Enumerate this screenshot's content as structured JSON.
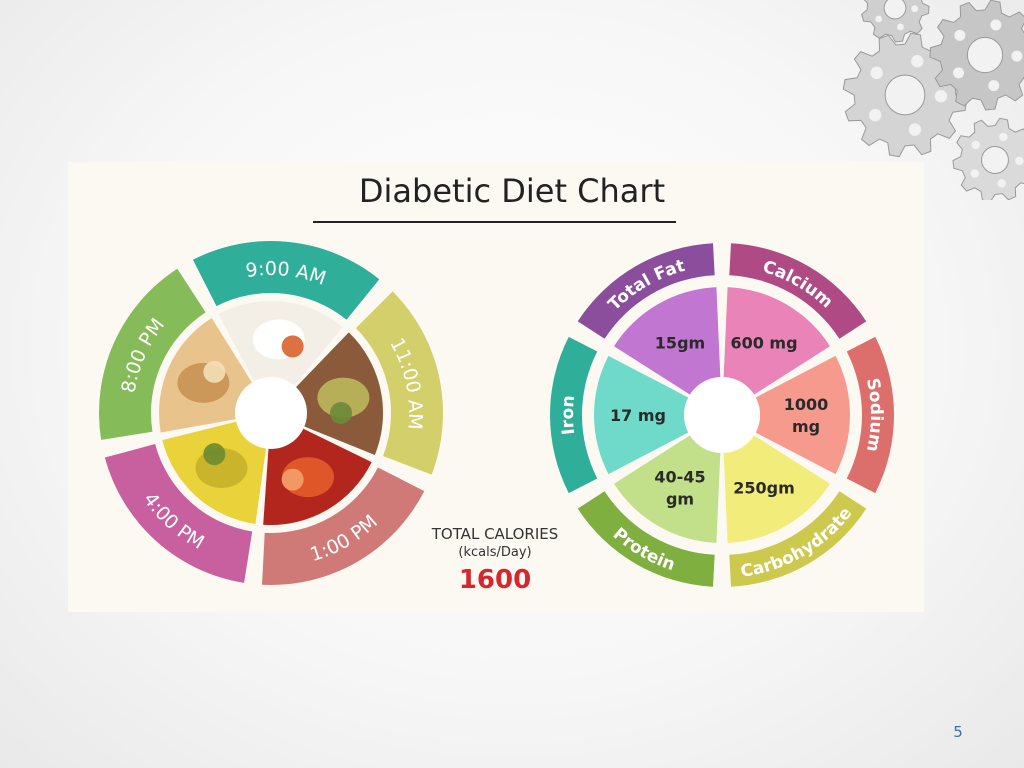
{
  "title": "Diabetic Diet Chart",
  "meals": [
    {
      "time": "9:00 AM",
      "color": "#2fae9a",
      "food": "idli-with-sambar-and-chutney"
    },
    {
      "time": "11:00 AM",
      "color": "#d3cf6a",
      "food": "sprouts-bowl"
    },
    {
      "time": "1:00 PM",
      "color": "#d07a78",
      "food": "fish-curry"
    },
    {
      "time": "4:00 PM",
      "color": "#c8609f",
      "food": "jackfruit"
    },
    {
      "time": "8:00 PM",
      "color": "#86bb59",
      "food": "rotis"
    }
  ],
  "total_calories": {
    "heading": "TOTAL CALORIES",
    "unit": "(kcals/Day)",
    "value": "1600"
  },
  "nutrients": [
    {
      "name": "Total Fat",
      "value": "15gm",
      "ring_color": "#8a4e9c",
      "fill_color": "#c177d2"
    },
    {
      "name": "Calcium",
      "value": "600 mg",
      "ring_color": "#b04a84",
      "fill_color": "#e983b8"
    },
    {
      "name": "Sodium",
      "value": "1000 mg",
      "ring_color": "#dc6e6c",
      "fill_color": "#f79a8e"
    },
    {
      "name": "Carbohydrate",
      "value": "250gm",
      "ring_color": "#cdc94e",
      "fill_color": "#f2ec7a"
    },
    {
      "name": "Protein",
      "value": "40-45 gm",
      "ring_color": "#7faf3e",
      "fill_color": "#c2df8a"
    },
    {
      "name": "Iron",
      "value": "17 mg",
      "ring_color": "#2fae9a",
      "fill_color": "#6fdac9"
    }
  ],
  "page_number": "5"
}
